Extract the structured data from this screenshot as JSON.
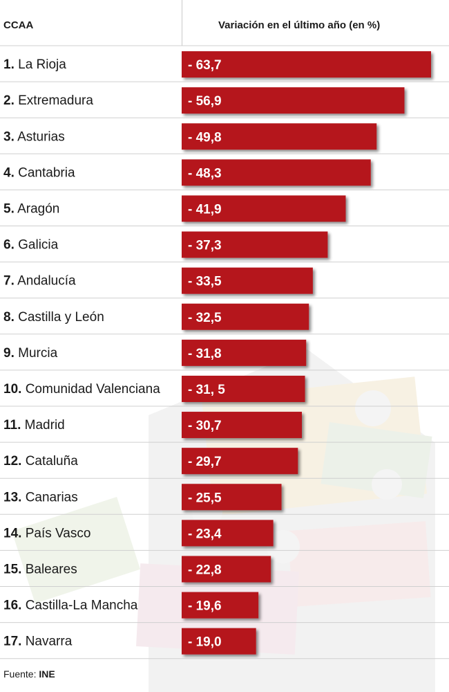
{
  "header": {
    "left": "CCAA",
    "right": "Variación en el último año (en %)"
  },
  "footer": {
    "label": "Fuente:",
    "source": "INE"
  },
  "colors": {
    "bar": "#b5121b",
    "bar_label": "#ffffff",
    "row_line": "#cfcfcf",
    "text": "#1a1a1a"
  },
  "chart_data": {
    "type": "bar",
    "orientation": "horizontal",
    "categories": [
      {
        "rank": "1.",
        "name": "La Rioja",
        "value": -63.7,
        "label": "- 63,7"
      },
      {
        "rank": "2.",
        "name": "Extremadura",
        "value": -56.9,
        "label": "- 56,9"
      },
      {
        "rank": "3.",
        "name": "Asturias",
        "value": -49.8,
        "label": "- 49,8"
      },
      {
        "rank": "4.",
        "name": "Cantabria",
        "value": -48.3,
        "label": "- 48,3"
      },
      {
        "rank": "5.",
        "name": "Aragón",
        "value": -41.9,
        "label": "- 41,9"
      },
      {
        "rank": "6.",
        "name": "Galicia",
        "value": -37.3,
        "label": "- 37,3"
      },
      {
        "rank": "7.",
        "name": "Andalucía",
        "value": -33.5,
        "label": "- 33,5"
      },
      {
        "rank": "8.",
        "name": "Castilla y León",
        "value": -32.5,
        "label": "- 32,5"
      },
      {
        "rank": "9.",
        "name": "Murcia",
        "value": -31.8,
        "label": "- 31,8"
      },
      {
        "rank": "10.",
        "name": "Comunidad Valenciana",
        "value": -31.5,
        "label": "- 31, 5"
      },
      {
        "rank": "11.",
        "name": "Madrid",
        "value": -30.7,
        "label": "- 30,7"
      },
      {
        "rank": "12.",
        "name": "Cataluña",
        "value": -29.7,
        "label": "- 29,7"
      },
      {
        "rank": "13.",
        "name": "Canarias",
        "value": -25.5,
        "label": "- 25,5"
      },
      {
        "rank": "14.",
        "name": "País Vasco",
        "value": -23.4,
        "label": "- 23,4"
      },
      {
        "rank": "15.",
        "name": "Baleares",
        "value": -22.8,
        "label": "- 22,8"
      },
      {
        "rank": "16.",
        "name": "Castilla-La Mancha",
        "value": -19.6,
        "label": "- 19,6"
      },
      {
        "rank": "17.",
        "name": "Navarra",
        "value": -19.0,
        "label": "- 19,0"
      }
    ],
    "xlim": [
      0,
      63.7
    ],
    "grid": false,
    "legend": "none"
  }
}
